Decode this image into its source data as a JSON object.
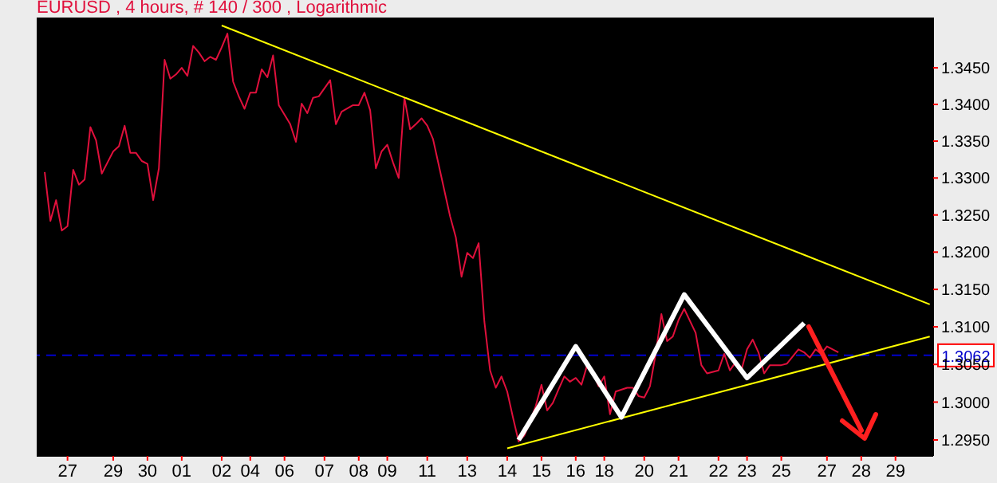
{
  "chart_data": {
    "type": "line",
    "title": "EURUSD , 4 hours, # 140 / 300 , Logarithmic",
    "log": "y",
    "grid": false,
    "legend": false,
    "marker": "none",
    "line_style": "solid",
    "categories": [
      null,
      null,
      null,
      null,
      "27",
      null,
      null,
      null,
      null,
      null,
      null,
      null,
      "29",
      null,
      null,
      null,
      null,
      null,
      "30",
      null,
      null,
      null,
      null,
      null,
      "01",
      null,
      null,
      null,
      null,
      null,
      null,
      "02",
      null,
      null,
      null,
      null,
      "04",
      null,
      null,
      null,
      null,
      null,
      "06",
      null,
      null,
      null,
      null,
      null,
      null,
      "07",
      null,
      null,
      null,
      null,
      null,
      "08",
      null,
      null,
      null,
      null,
      "09",
      null,
      null,
      null,
      null,
      null,
      null,
      "11",
      null,
      null,
      null,
      null,
      null,
      null,
      "13",
      null,
      null,
      null,
      null,
      null,
      null,
      "14",
      null,
      null,
      null,
      null,
      null,
      "15",
      null,
      null,
      null,
      null,
      null,
      "16",
      null,
      null,
      null,
      null,
      "18",
      null,
      null,
      null,
      null,
      null,
      null,
      "20",
      null,
      null,
      null,
      null,
      null,
      "21",
      null,
      null,
      null,
      null,
      null,
      null,
      "22",
      null,
      null,
      null,
      null,
      "23",
      null,
      null,
      null,
      null,
      null,
      "25",
      null,
      null,
      null,
      null,
      null,
      null,
      null,
      "27",
      null,
      null,
      null,
      null,
      null,
      "28",
      null,
      null,
      null,
      null,
      null,
      "29",
      null,
      null,
      null,
      null,
      null,
      null
    ],
    "ylim": [
      1.2929,
      1.3519
    ],
    "yticks": [
      {
        "value": 1.295,
        "label": "1.2950"
      },
      {
        "value": 1.3,
        "label": "1.3000"
      },
      {
        "value": 1.305,
        "label": "1.3050"
      },
      {
        "value": 1.31,
        "label": "1.3100"
      },
      {
        "value": 1.315,
        "label": "1.3150"
      },
      {
        "value": 1.32,
        "label": "1.3200"
      },
      {
        "value": 1.325,
        "label": "1.3250"
      },
      {
        "value": 1.33,
        "label": "1.3300"
      },
      {
        "value": 1.335,
        "label": "1.3350"
      },
      {
        "value": 1.34,
        "label": "1.3400"
      },
      {
        "value": 1.345,
        "label": "1.3450"
      }
    ],
    "ref_lines": [
      {
        "axis": "y",
        "value": 1.3062,
        "label": "1.3062",
        "color": "#0000cc",
        "line_style": "dashed"
      }
    ],
    "series": [
      {
        "color": "#e0103c",
        "values": [
          1.3308,
          1.3242,
          1.327,
          1.3229,
          1.3235,
          1.3311,
          1.3291,
          1.3298,
          1.3369,
          1.3351,
          1.3306,
          1.3321,
          1.3336,
          1.3343,
          1.3371,
          1.3334,
          1.3334,
          1.3323,
          1.3319,
          1.327,
          1.3313,
          1.3461,
          1.3435,
          1.3441,
          1.345,
          1.3439,
          1.348,
          1.3471,
          1.3459,
          1.3465,
          1.3461,
          1.3478,
          1.3497,
          1.3431,
          1.3411,
          1.3394,
          1.3416,
          1.3416,
          1.3448,
          1.3437,
          1.3467,
          1.3399,
          null,
          1.3373,
          1.3349,
          1.3401,
          1.3388,
          1.3409,
          1.3411,
          null,
          1.3433,
          1.3373,
          1.339,
          null,
          1.3399,
          1.3399,
          1.3416,
          1.3392,
          1.3313,
          1.3336,
          1.3345,
          1.3321,
          1.33,
          1.3409,
          1.3366,
          1.3373,
          1.3381,
          1.3371,
          1.3353,
          null,
          null,
          1.3248,
          1.322,
          1.3167,
          1.3199,
          1.3192,
          1.3212,
          1.3107,
          1.3042,
          1.3019,
          1.3034,
          1.3014,
          1.298,
          1.2948,
          1.2956,
          1.2974,
          1.2995,
          1.3023,
          1.2989,
          1.2999,
          1.3017,
          1.3034,
          1.3027,
          1.3032,
          1.3023,
          1.3049,
          1.304,
          1.3021,
          1.3034,
          1.2984,
          1.3014,
          null,
          1.3019,
          1.3019,
          1.3008,
          1.3006,
          1.3021,
          1.3064,
          1.3117,
          1.3081,
          1.3087,
          1.3109,
          1.3124,
          null,
          1.3092,
          1.3049,
          1.3038,
          null,
          1.3042,
          1.3064,
          1.3042,
          1.3053,
          1.3042,
          1.307,
          1.3083,
          1.3066,
          1.3038,
          1.3049,
          null,
          1.3049,
          1.3051,
          null,
          1.307,
          1.3066,
          1.3059,
          1.307,
          1.3064,
          1.3074,
          null,
          1.3066,
          null,
          null,
          null,
          null,
          null,
          null,
          null,
          null,
          null,
          null,
          null,
          null,
          null,
          null,
          null,
          null
        ]
      },
      {
        "color": "#ffff00",
        "values": [
          null,
          null,
          null,
          null,
          null,
          null,
          null,
          null,
          null,
          null,
          null,
          null,
          null,
          null,
          null,
          null,
          null,
          null,
          null,
          null,
          null,
          null,
          null,
          null,
          null,
          null,
          null,
          null,
          null,
          null,
          null,
          1.3508,
          null,
          null,
          null,
          null,
          null,
          null,
          null,
          null,
          null,
          null,
          null,
          null,
          null,
          null,
          null,
          null,
          null,
          null,
          null,
          null,
          null,
          null,
          null,
          null,
          null,
          null,
          null,
          null,
          null,
          null,
          null,
          null,
          null,
          null,
          null,
          null,
          null,
          null,
          null,
          null,
          null,
          null,
          null,
          null,
          null,
          null,
          null,
          null,
          null,
          null,
          null,
          null,
          null,
          null,
          null,
          null,
          null,
          null,
          null,
          null,
          null,
          null,
          null,
          null,
          null,
          null,
          null,
          null,
          null,
          null,
          null,
          null,
          null,
          null,
          null,
          null,
          null,
          null,
          null,
          null,
          null,
          null,
          null,
          null,
          null,
          null,
          null,
          null,
          null,
          null,
          null,
          null,
          null,
          null,
          null,
          null,
          null,
          null,
          null,
          null,
          null,
          null,
          null,
          null,
          null,
          null,
          null,
          null,
          null,
          null,
          null,
          null,
          null,
          null,
          null,
          null,
          null,
          null,
          null,
          null,
          null,
          null,
          null,
          1.313
        ]
      },
      {
        "color": "#ffff00",
        "values": [
          null,
          null,
          null,
          null,
          null,
          null,
          null,
          null,
          null,
          null,
          null,
          null,
          null,
          null,
          null,
          null,
          null,
          null,
          null,
          null,
          null,
          null,
          null,
          null,
          null,
          null,
          null,
          null,
          null,
          null,
          null,
          null,
          null,
          null,
          null,
          null,
          null,
          null,
          null,
          null,
          null,
          null,
          null,
          null,
          null,
          null,
          null,
          null,
          null,
          null,
          null,
          null,
          null,
          null,
          null,
          null,
          null,
          null,
          null,
          null,
          null,
          null,
          null,
          null,
          null,
          null,
          null,
          null,
          null,
          null,
          null,
          null,
          null,
          null,
          null,
          null,
          null,
          null,
          null,
          null,
          null,
          1.2939,
          null,
          null,
          null,
          null,
          null,
          null,
          null,
          null,
          null,
          null,
          null,
          null,
          null,
          null,
          null,
          null,
          null,
          null,
          null,
          null,
          null,
          null,
          null,
          null,
          null,
          null,
          null,
          null,
          null,
          null,
          null,
          null,
          null,
          null,
          null,
          null,
          null,
          null,
          null,
          null,
          null,
          null,
          null,
          null,
          null,
          null,
          null,
          null,
          null,
          null,
          null,
          null,
          null,
          null,
          null,
          null,
          null,
          null,
          null,
          null,
          null,
          null,
          null,
          null,
          null,
          null,
          null,
          null,
          null,
          null,
          null,
          null,
          null,
          1.3087
        ]
      },
      {
        "color": "#ffffff",
        "values": [
          null,
          null,
          null,
          null,
          null,
          null,
          null,
          null,
          null,
          null,
          null,
          null,
          null,
          null,
          null,
          null,
          null,
          null,
          null,
          null,
          null,
          null,
          null,
          null,
          null,
          null,
          null,
          null,
          null,
          null,
          null,
          null,
          null,
          null,
          null,
          null,
          null,
          null,
          null,
          null,
          null,
          null,
          null,
          null,
          null,
          null,
          null,
          null,
          null,
          null,
          null,
          null,
          null,
          null,
          null,
          null,
          null,
          null,
          null,
          null,
          null,
          null,
          null,
          null,
          null,
          null,
          null,
          null,
          null,
          null,
          null,
          null,
          null,
          null,
          null,
          null,
          null,
          null,
          null,
          null,
          null,
          null,
          null,
          1.295,
          null,
          null,
          null,
          null,
          null,
          null,
          null,
          null,
          null,
          1.3074,
          null,
          null,
          null,
          null,
          null,
          null,
          null,
          1.298,
          null,
          null,
          null,
          null,
          null,
          null,
          null,
          null,
          null,
          null,
          1.3143,
          null,
          null,
          null,
          null,
          null,
          null,
          null,
          null,
          null,
          null,
          1.3032,
          null,
          null,
          null,
          null,
          null,
          null,
          null,
          null,
          null,
          1.3105,
          null,
          null,
          null,
          null,
          null,
          null,
          null,
          null,
          null,
          null,
          null,
          null,
          null,
          null,
          null,
          null,
          null,
          null,
          null,
          null,
          null,
          null
        ]
      }
    ]
  }
}
